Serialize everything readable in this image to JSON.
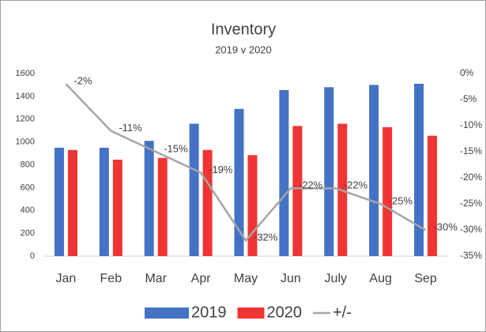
{
  "chart_data": {
    "type": "bar",
    "title": "Inventory",
    "subtitle": "2019 v 2020",
    "categories": [
      "Jan",
      "Feb",
      "Mar",
      "Apr",
      "May",
      "Jun",
      "July",
      "Aug",
      "Sep"
    ],
    "series": [
      {
        "name": "2019",
        "color": "#4472c4",
        "values": [
          950,
          950,
          1010,
          1160,
          1290,
          1455,
          1480,
          1500,
          1510
        ]
      },
      {
        "name": "2020",
        "color": "#f03434",
        "values": [
          930,
          845,
          860,
          930,
          885,
          1140,
          1160,
          1130,
          1055
        ]
      },
      {
        "name": "+/-",
        "type": "line",
        "axis": "y2",
        "color": "#a5a5a5",
        "values": [
          -2,
          -11,
          -15,
          -19,
          -32,
          -22,
          -22,
          -25,
          -30
        ],
        "value_labels": [
          "-2%",
          "-11%",
          "-15%",
          "-19%",
          "-32%",
          "-22%",
          "-22%",
          "-25%",
          "-30%"
        ]
      }
    ],
    "ylim": [
      0,
      1600
    ],
    "yticks": [
      0,
      200,
      400,
      600,
      800,
      1000,
      1200,
      1400,
      1600
    ],
    "y2lim": [
      -35,
      0
    ],
    "y2ticks": [
      {
        "value": 0,
        "label": "0%"
      },
      {
        "value": -5,
        "label": "-5%"
      },
      {
        "value": -10,
        "label": "-10%"
      },
      {
        "value": -15,
        "label": "-15%"
      },
      {
        "value": -20,
        "label": "-20%"
      },
      {
        "value": -25,
        "label": "-25%"
      },
      {
        "value": -30,
        "label": "-30%"
      },
      {
        "value": -35,
        "label": "-35%"
      }
    ],
    "legend": "bottom"
  }
}
